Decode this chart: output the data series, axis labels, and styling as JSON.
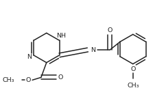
{
  "bg_color": "#ffffff",
  "line_color": "#222222",
  "line_width": 1.1,
  "font_size": 6.8,
  "figsize": [
    2.42,
    1.48
  ],
  "dpi": 100,
  "xlim": [
    0,
    242
  ],
  "ylim": [
    0,
    148
  ]
}
